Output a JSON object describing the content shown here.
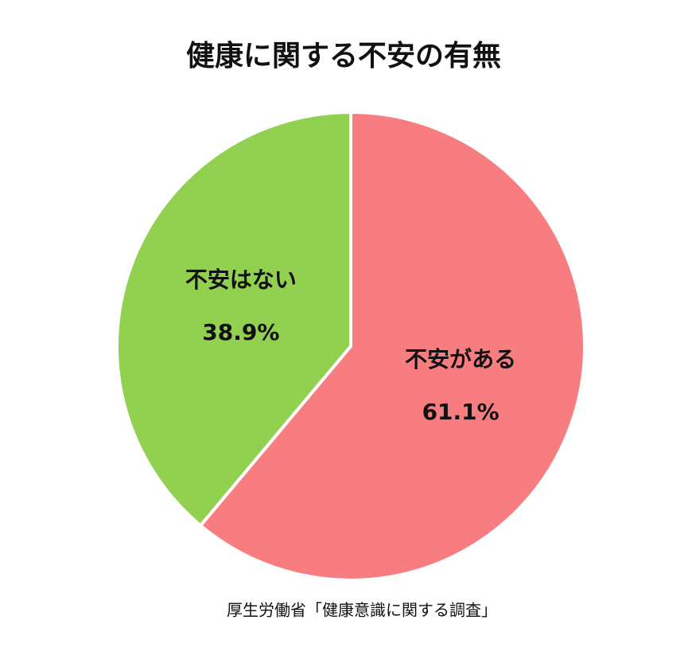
{
  "chart_data": {
    "type": "pie",
    "title": "健康に関する不安の有無",
    "categories": [
      "不安がある",
      "不安はない"
    ],
    "values": [
      61.1,
      38.9
    ],
    "value_labels": [
      "61.1%",
      "38.9%"
    ],
    "colors": [
      "#f87d80",
      "#92d050"
    ],
    "source": "厚生労働省「健康意識に関する調査」"
  }
}
